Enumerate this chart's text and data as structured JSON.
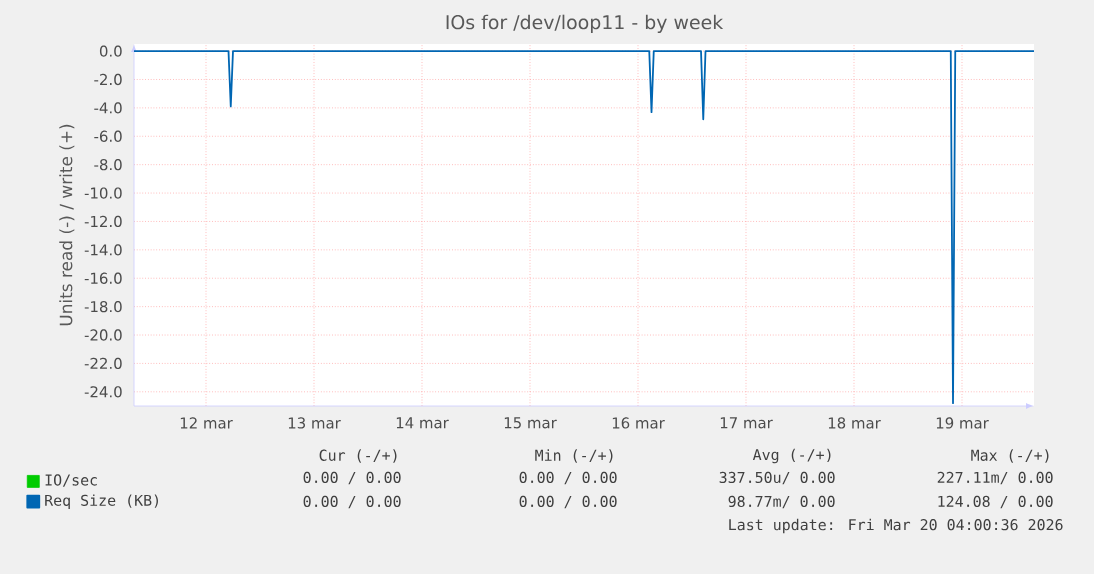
{
  "chart_data": {
    "type": "line",
    "title": "IOs for /dev/loop11 - by week",
    "ylabel": "Units read (-) / write (+)",
    "xlim": [
      "2026-03-11T20:00",
      "2026-03-20T04:00"
    ],
    "xticks": [
      {
        "value": "2026-03-12T12:00",
        "label": "12 mar"
      },
      {
        "value": "2026-03-13T12:00",
        "label": "13 mar"
      },
      {
        "value": "2026-03-14T12:00",
        "label": "14 mar"
      },
      {
        "value": "2026-03-15T12:00",
        "label": "15 mar"
      },
      {
        "value": "2026-03-16T12:00",
        "label": "16 mar"
      },
      {
        "value": "2026-03-17T12:00",
        "label": "17 mar"
      },
      {
        "value": "2026-03-18T12:00",
        "label": "18 mar"
      },
      {
        "value": "2026-03-19T12:00",
        "label": "19 mar"
      }
    ],
    "ylim": [
      -25,
      0.5
    ],
    "yticks": [
      {
        "value": 0,
        "label": "0.0"
      },
      {
        "value": -2,
        "label": "-2.0"
      },
      {
        "value": -4,
        "label": "-4.0"
      },
      {
        "value": -6,
        "label": "-6.0"
      },
      {
        "value": -8,
        "label": "-8.0"
      },
      {
        "value": -10,
        "label": "-10.0"
      },
      {
        "value": -12,
        "label": "-12.0"
      },
      {
        "value": -14,
        "label": "-14.0"
      },
      {
        "value": -16,
        "label": "-16.0"
      },
      {
        "value": -18,
        "label": "-18.0"
      },
      {
        "value": -20,
        "label": "-20.0"
      },
      {
        "value": -22,
        "label": "-22.0"
      },
      {
        "value": -24,
        "label": "-24.0"
      }
    ],
    "grid": true,
    "legend": "bottom left",
    "series": [
      {
        "name": "IO/sec",
        "color": "#00cc00"
      },
      {
        "name": "Req Size (KB)",
        "color": "#0066b3",
        "x": [
          "2026-03-11T20:00",
          "2026-03-12T17:00",
          "2026-03-12T17:30",
          "2026-03-12T18:00",
          "2026-03-16T14:30",
          "2026-03-16T15:00",
          "2026-03-16T15:30",
          "2026-03-17T02:00",
          "2026-03-17T02:30",
          "2026-03-17T03:00",
          "2026-03-19T09:30",
          "2026-03-19T10:00",
          "2026-03-19T10:30",
          "2026-03-20T04:00"
        ],
        "values": [
          0,
          0,
          -3.9,
          0,
          0,
          -4.3,
          0,
          0,
          -4.8,
          0,
          0,
          -24.8,
          0,
          0
        ]
      }
    ],
    "annotations": [
      "Cur (-/+)",
      "Min (-/+)",
      "Avg (-/+)",
      "Max (-/+)",
      "0.00 /  0.00",
      "0.00 /  0.00",
      "337.50u/  0.00",
      "227.11m/  0.00",
      "0.00 /  0.00",
      "0.00 /  0.00",
      "98.77m/  0.00",
      "124.08 /  0.00",
      "Last update: Fri Mar 20 04:00:36 2026"
    ]
  }
}
